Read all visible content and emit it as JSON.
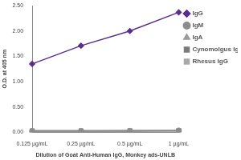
{
  "chart_data": {
    "type": "line",
    "x_label": "Dilution of Goat Anti-Human IgG, Monkey ads-UNLB",
    "y_label": "O.D. at 405 nm",
    "categories": [
      "0.125 µg/mL",
      "0.25 µg/mL",
      "0.5 µg/mL",
      "1 µg/mL"
    ],
    "series": [
      {
        "name": "IgG",
        "color": "#5b2d90",
        "marker": "diamond",
        "values": [
          1.35,
          1.71,
          2.0,
          2.37
        ]
      },
      {
        "name": "IgM",
        "color": "#8c8c8c",
        "marker": "circle",
        "values": [
          0.02,
          0.02,
          0.02,
          0.03
        ]
      },
      {
        "name": "IgA",
        "color": "#9a9a9a",
        "marker": "triangle",
        "values": [
          0.02,
          0.02,
          0.02,
          0.02
        ]
      },
      {
        "name": "Cynomolgus IgG",
        "color": "#7a7a7a",
        "marker": "square",
        "values": [
          0.03,
          0.03,
          0.03,
          0.03
        ]
      },
      {
        "name": "Rhesus IgG",
        "color": "#a8a8a8",
        "marker": "square",
        "values": [
          0.02,
          0.02,
          0.03,
          0.03
        ]
      }
    ],
    "ylim": [
      0,
      2.5
    ],
    "yticks": [
      {
        "value": 0,
        "label": "0.00"
      },
      {
        "value": 0.5,
        "label": "0.50"
      },
      {
        "value": 1,
        "label": "1.00"
      },
      {
        "value": 1.5,
        "label": "1.50"
      },
      {
        "value": 2,
        "label": "2.00"
      },
      {
        "value": 2.5,
        "label": "2.50"
      }
    ],
    "grid": false,
    "legend": "right"
  }
}
